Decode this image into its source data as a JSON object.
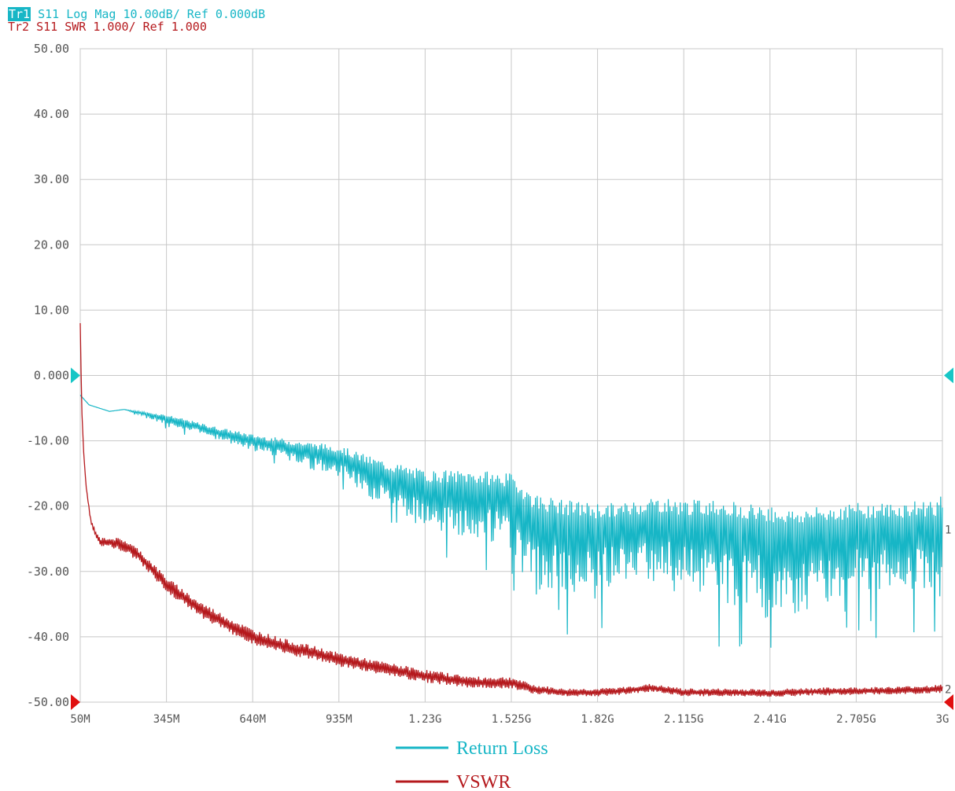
{
  "header": {
    "tr1_tag": "Tr1",
    "tr1_text": " S11 Log Mag 10.00dB/ Ref 0.000dB",
    "tr2_text": "Tr2 S11 SWR 1.000/ Ref 1.000"
  },
  "colors": {
    "return_loss": "#17b6c6",
    "vswr": "#b5191d",
    "grid": "#c8c8c8",
    "axis_text": "#555555",
    "ref_marker_cyan": "#17c6c6",
    "ref_marker_red": "#e01010"
  },
  "chart_data": {
    "type": "line",
    "title": "",
    "xlabel": "",
    "ylabel": "",
    "x_unit": "MHz",
    "xlim": [
      50,
      3000
    ],
    "ylim": [
      -50,
      50
    ],
    "grid": true,
    "x_tick_values": [
      50,
      345,
      640,
      935,
      1230,
      1525,
      1820,
      2115,
      2410,
      2705,
      3000
    ],
    "x_tick_labels": [
      "50M",
      "345M",
      "640M",
      "935M",
      "1.23G",
      "1.525G",
      "1.82G",
      "2.115G",
      "2.41G",
      "2.705G",
      "3G"
    ],
    "y_tick_values": [
      50,
      40,
      30,
      20,
      10,
      0,
      -10,
      -20,
      -30,
      -40,
      -50
    ],
    "y_tick_labels": [
      "50.00",
      "40.00",
      "30.00",
      "20.00",
      "10.00",
      "0.000",
      "-10.00",
      "-20.00",
      "-30.00",
      "-40.00",
      "-50.00"
    ],
    "legend_position": "bottom-center",
    "right_markers": [
      "1",
      "2"
    ],
    "series": [
      {
        "name": "Return Loss",
        "color": "#17b6c6",
        "x": [
          50,
          80,
          150,
          200,
          345,
          500,
          640,
          800,
          935,
          1050,
          1230,
          1400,
          1525,
          1600,
          1700,
          1820,
          1900,
          2000,
          2115,
          2250,
          2410,
          2500,
          2600,
          2705,
          2850,
          3000
        ],
        "y": [
          -3,
          -4.5,
          -5.5,
          -5.2,
          -6.5,
          -8.5,
          -10,
          -11.5,
          -12.5,
          -15,
          -17.5,
          -18,
          -18.5,
          -22,
          -23,
          -23.5,
          -23.5,
          -22.5,
          -23,
          -23,
          -24,
          -24.5,
          -24,
          -23.5,
          -23.5,
          -23.5
        ],
        "ripple_min": [
          0,
          0,
          0,
          0,
          1,
          1,
          1.5,
          2,
          3,
          4,
          6,
          7,
          8,
          12,
          10,
          10,
          8,
          9,
          9,
          12,
          12,
          12,
          11,
          10,
          9,
          10
        ],
        "ripple_max": [
          0,
          0,
          0,
          0,
          0.5,
          0.8,
          1,
          1.5,
          1.8,
          2.5,
          3,
          3.5,
          3.5,
          4,
          4,
          4,
          4,
          4,
          4,
          4,
          4,
          4,
          4,
          4,
          4,
          5
        ]
      },
      {
        "name": "VSWR",
        "color": "#b5191d",
        "x": [
          50,
          55,
          62,
          70,
          85,
          100,
          120,
          150,
          200,
          250,
          345,
          450,
          550,
          640,
          750,
          850,
          935,
          1050,
          1230,
          1400,
          1525,
          1600,
          1700,
          1820,
          1900,
          2000,
          2115,
          2250,
          2410,
          2550,
          2705,
          2850,
          3000
        ],
        "y": [
          8,
          -5,
          -12,
          -17,
          -22,
          -24,
          -25.5,
          -25.5,
          -26,
          -27.5,
          -32,
          -35.5,
          -38,
          -40,
          -41.5,
          -42.5,
          -43.5,
          -44.5,
          -46,
          -47,
          -47,
          -48,
          -48.5,
          -48.5,
          -48.3,
          -47.8,
          -48.5,
          -48.5,
          -48.6,
          -48.4,
          -48.3,
          -48.2,
          -48
        ],
        "ripple": [
          0,
          0,
          0,
          0,
          0.3,
          0.4,
          0.6,
          0.8,
          1,
          1,
          1.2,
          1.2,
          1.2,
          1.2,
          1.2,
          1.1,
          1.1,
          1,
          1,
          0.9,
          0.9,
          0.7,
          0.6,
          0.6,
          0.6,
          0.6,
          0.6,
          0.6,
          0.6,
          0.6,
          0.6,
          0.6,
          0.7
        ]
      }
    ]
  }
}
